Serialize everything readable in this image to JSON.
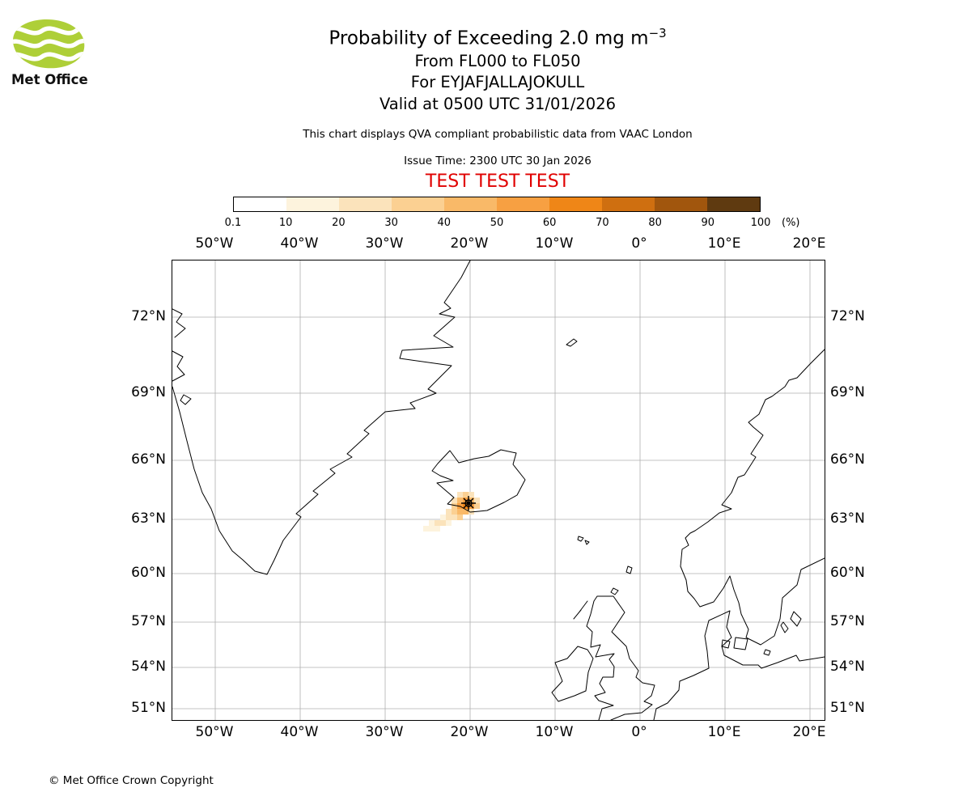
{
  "branding": {
    "logo_text": "Met Office",
    "logo_green": "#aecf38"
  },
  "header": {
    "title_main": "Probability of Exceeding 2.0 mg m",
    "title_exponent": "−3",
    "flight_levels": "From FL000 to FL050",
    "volcano_line": "For EYJAFJALLAJOKULL",
    "valid_line": "Valid at 0500 UTC 31/01/2026",
    "description": "This chart displays QVA compliant probabilistic data from VAAC London",
    "issue_time": "Issue Time: 2300 UTC 30 Jan 2026",
    "test_banner": "TEST TEST TEST",
    "test_color": "#e00000"
  },
  "colorbar": {
    "unit": "(%)",
    "tick_labels": [
      "0.1",
      "10",
      "20",
      "30",
      "40",
      "50",
      "60",
      "70",
      "80",
      "90",
      "100"
    ],
    "segment_colors": [
      "#ffffff",
      "#fdf3dd",
      "#fbe3bb",
      "#fbd092",
      "#f9b968",
      "#f7a042",
      "#ef8617",
      "#cf6f10",
      "#a1560d",
      "#5f3a10"
    ]
  },
  "map": {
    "lon_labels": [
      "50°W",
      "40°W",
      "30°W",
      "20°W",
      "10°W",
      "0°",
      "10°E",
      "20°E"
    ],
    "lat_labels": [
      "72°N",
      "69°N",
      "66°N",
      "63°N",
      "60°N",
      "57°N",
      "54°N",
      "51°N"
    ],
    "cell_size": 7,
    "ash_cells": [
      [
        352,
        286,
        "#fbe3bb"
      ],
      [
        359,
        286,
        "#fbd092"
      ],
      [
        366,
        286,
        "#fbe3bb"
      ],
      [
        345,
        293,
        "#fbe3bb"
      ],
      [
        352,
        293,
        "#f9b968"
      ],
      [
        359,
        293,
        "#f7a042"
      ],
      [
        366,
        293,
        "#f9b968"
      ],
      [
        373,
        293,
        "#fbe3bb"
      ],
      [
        345,
        300,
        "#fbd092"
      ],
      [
        352,
        300,
        "#f7a042"
      ],
      [
        359,
        300,
        "#ef8617"
      ],
      [
        366,
        300,
        "#f7a042"
      ],
      [
        373,
        300,
        "#fbd092"
      ],
      [
        338,
        307,
        "#fbe3bb"
      ],
      [
        345,
        307,
        "#fbd092"
      ],
      [
        352,
        307,
        "#f9b968"
      ],
      [
        359,
        307,
        "#f9b968"
      ],
      [
        366,
        307,
        "#fbe3bb"
      ],
      [
        331,
        314,
        "#fdf3dd"
      ],
      [
        338,
        314,
        "#fbe3bb"
      ],
      [
        345,
        314,
        "#fbe3bb"
      ],
      [
        352,
        314,
        "#fbd092"
      ],
      [
        317,
        321,
        "#fdf3dd"
      ],
      [
        324,
        321,
        "#fbe3bb"
      ],
      [
        331,
        321,
        "#fbe3bb"
      ],
      [
        338,
        321,
        "#fdf3dd"
      ],
      [
        310,
        328,
        "#fdf3dd"
      ],
      [
        317,
        328,
        "#fdf3dd"
      ],
      [
        324,
        328,
        "#fdf3dd"
      ]
    ]
  },
  "footer": {
    "copyright": "© Met Office Crown Copyright"
  }
}
